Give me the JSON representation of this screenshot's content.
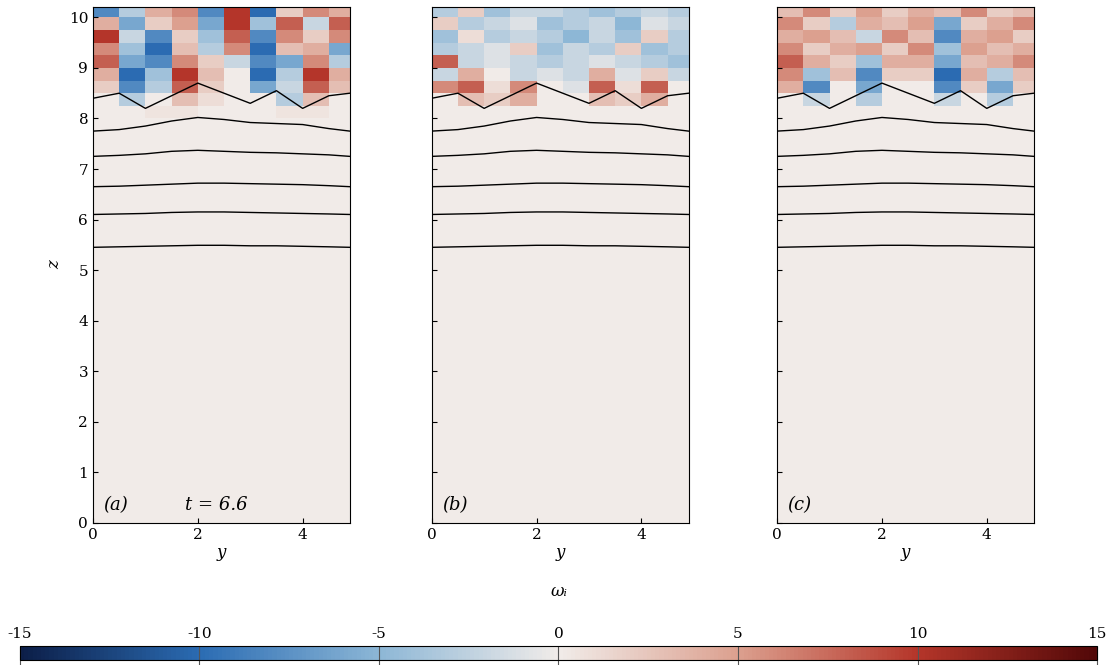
{
  "chart_data": [
    {
      "type": "heatmap",
      "label": "(a)",
      "annotation": "t = 6.6",
      "x_label": "y",
      "y_label": "z",
      "xlim": [
        0,
        4.9
      ],
      "ylim": [
        0,
        10.2
      ],
      "xticks": [
        0,
        2,
        4
      ],
      "yticks": [
        0,
        1,
        2,
        3,
        4,
        5,
        6,
        7,
        8,
        9,
        10
      ],
      "y_edges": [
        0,
        0.5,
        1,
        1.5,
        2,
        2.5,
        3,
        3.5,
        4,
        4.5,
        4.9
      ],
      "z_edges": [
        0,
        8,
        8.25,
        8.5,
        8.75,
        9,
        9.25,
        9.5,
        9.75,
        10,
        10.2
      ],
      "cells": [
        [
          0,
          0,
          0,
          0,
          0,
          0,
          0,
          0,
          0,
          0
        ],
        [
          0,
          0,
          0.5,
          0.5,
          0,
          0,
          0,
          0.5,
          0.5,
          0
        ],
        [
          0,
          -3,
          0,
          3,
          1,
          0,
          0,
          -3,
          3,
          0
        ],
        [
          2,
          -8,
          -3,
          8,
          2,
          0,
          -6,
          -2,
          8,
          3
        ],
        [
          4,
          -10,
          -4,
          10,
          3,
          0,
          -10,
          -3,
          10,
          4
        ],
        [
          8,
          -6,
          -8,
          6,
          2,
          -2,
          -8,
          -6,
          6,
          -3
        ],
        [
          6,
          -4,
          -10,
          3,
          -3,
          6,
          -10,
          3,
          4,
          -6
        ],
        [
          10,
          -2,
          -8,
          2,
          -4,
          8,
          -8,
          6,
          2,
          6
        ],
        [
          4,
          -6,
          2,
          5,
          -6,
          10,
          -4,
          8,
          -2,
          8
        ],
        [
          -8,
          -3,
          4,
          6,
          -8,
          10,
          -10,
          2,
          6,
          4
        ]
      ]
    },
    {
      "type": "heatmap",
      "label": "(b)",
      "x_label": "y",
      "tick_labels": "x",
      "xlim": [
        0,
        4.9
      ],
      "ylim": [
        0,
        10.2
      ],
      "xticks": [
        0,
        2,
        4
      ],
      "yticks": [
        0,
        1,
        2,
        3,
        4,
        5,
        6,
        7,
        8,
        9,
        10
      ],
      "y_edges": [
        0,
        0.5,
        1,
        1.5,
        2,
        2.5,
        3,
        3.5,
        4,
        4.5,
        4.9
      ],
      "z_edges": [
        0,
        8,
        8.25,
        8.5,
        8.75,
        9,
        9.25,
        9.5,
        9.75,
        10,
        10.2
      ],
      "cells": [
        [
          0,
          0,
          0,
          0,
          0,
          0,
          0,
          0,
          0,
          0
        ],
        [
          0,
          0,
          0,
          0,
          0,
          0,
          0,
          0,
          0,
          0
        ],
        [
          0,
          3,
          2,
          4,
          0,
          0,
          3,
          2,
          4,
          0
        ],
        [
          6,
          8,
          1,
          6,
          0,
          -1,
          8,
          1,
          8,
          0
        ],
        [
          -2,
          4,
          0,
          -2,
          -1,
          -2,
          4,
          -1,
          2,
          -2
        ],
        [
          8,
          -2,
          -1,
          -2,
          -3,
          -2,
          -1,
          -2,
          -3,
          -4
        ],
        [
          -3,
          -2,
          -1,
          2,
          -4,
          -2,
          -3,
          2,
          -4,
          -3
        ],
        [
          -4,
          1,
          -3,
          -2,
          -3,
          -5,
          -2,
          -4,
          2,
          -3
        ],
        [
          2,
          -3,
          -2,
          -1,
          -4,
          -3,
          -2,
          -5,
          -1,
          -2
        ],
        [
          -3,
          2,
          -4,
          -2,
          -2,
          -3,
          -4,
          -3,
          -2,
          -3
        ]
      ]
    },
    {
      "type": "heatmap",
      "label": "(c)",
      "x_label": "y",
      "tick_labels": "x",
      "xlim": [
        0,
        4.9
      ],
      "ylim": [
        0,
        10.2
      ],
      "xticks": [
        0,
        2,
        4
      ],
      "yticks": [
        0,
        1,
        2,
        3,
        4,
        5,
        6,
        7,
        8,
        9,
        10
      ],
      "y_edges": [
        0,
        0.5,
        1,
        1.5,
        2,
        2.5,
        3,
        3.5,
        4,
        4.5,
        4.9
      ],
      "z_edges": [
        0,
        8,
        8.25,
        8.5,
        8.75,
        9,
        9.25,
        9.5,
        9.75,
        10,
        10.2
      ],
      "cells": [
        [
          0,
          0,
          0,
          0,
          0,
          0,
          0,
          0,
          0,
          0
        ],
        [
          0,
          0,
          0,
          0,
          0,
          0,
          0,
          0,
          0,
          0
        ],
        [
          0,
          -2,
          0,
          -3,
          0,
          0,
          -2,
          0,
          -3,
          0
        ],
        [
          4,
          -8,
          0,
          -6,
          0,
          0,
          -8,
          2,
          -6,
          2
        ],
        [
          6,
          -4,
          3,
          -8,
          2,
          2,
          -10,
          4,
          -3,
          3
        ],
        [
          8,
          4,
          2,
          -4,
          4,
          4,
          -6,
          3,
          4,
          6
        ],
        [
          6,
          2,
          4,
          5,
          2,
          6,
          -4,
          5,
          3,
          4
        ],
        [
          4,
          5,
          3,
          -2,
          6,
          3,
          -8,
          4,
          5,
          2
        ],
        [
          6,
          2,
          -3,
          4,
          3,
          5,
          -6,
          2,
          4,
          6
        ],
        [
          3,
          6,
          2,
          5,
          2,
          4,
          3,
          6,
          2,
          3
        ]
      ]
    }
  ],
  "contours": {
    "y": [
      0,
      0.5,
      1,
      1.5,
      2,
      2.5,
      3,
      3.5,
      4,
      4.5,
      4.9
    ],
    "lines": [
      [
        5.45,
        5.46,
        5.47,
        5.48,
        5.49,
        5.49,
        5.48,
        5.48,
        5.47,
        5.46,
        5.45
      ],
      [
        6.1,
        6.11,
        6.12,
        6.14,
        6.15,
        6.15,
        6.14,
        6.13,
        6.12,
        6.11,
        6.1
      ],
      [
        6.65,
        6.66,
        6.68,
        6.7,
        6.72,
        6.72,
        6.71,
        6.7,
        6.69,
        6.67,
        6.65
      ],
      [
        7.25,
        7.27,
        7.3,
        7.35,
        7.37,
        7.35,
        7.33,
        7.32,
        7.3,
        7.28,
        7.25
      ],
      [
        7.75,
        7.78,
        7.85,
        7.95,
        8.02,
        7.98,
        7.92,
        7.9,
        7.88,
        7.8,
        7.75
      ],
      [
        8.4,
        8.5,
        8.2,
        8.45,
        8.7,
        8.5,
        8.3,
        8.55,
        8.2,
        8.45,
        8.5
      ]
    ]
  },
  "colorbar": {
    "label": "ωᵢ",
    "range": [
      -15,
      15
    ],
    "ticks": [
      -15,
      -10,
      -5,
      0,
      5,
      10,
      15
    ]
  }
}
